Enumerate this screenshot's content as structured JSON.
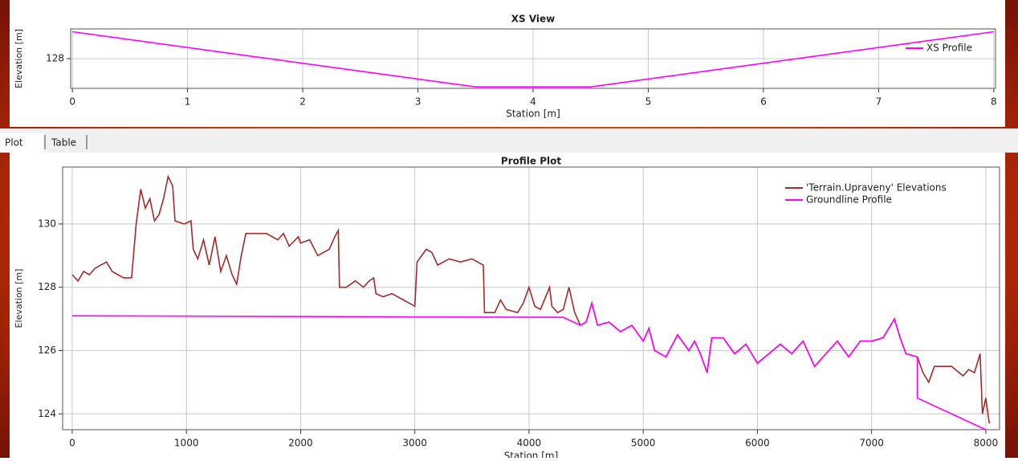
{
  "tabs": [
    "Plot",
    "Table"
  ],
  "chart_data": [
    {
      "type": "line",
      "title": "XS View",
      "x_label": "Station [m]",
      "y_label": "Elevation [m]",
      "xlim": [
        -0.015,
        8.015
      ],
      "xticks": [
        0,
        1,
        2,
        3,
        4,
        5,
        6,
        7,
        8
      ],
      "ylim": [
        126.95,
        129.05
      ],
      "yticks": [
        128
      ],
      "grid": true,
      "series": [
        {
          "name": "XS Profile",
          "color": "#ff00ff",
          "x": [
            0,
            3.5,
            4.5,
            8
          ],
          "values": [
            128.95,
            127.0,
            127.0,
            128.95
          ]
        }
      ]
    },
    {
      "type": "line",
      "title": "Profile Plot",
      "x_label": "Station [m]",
      "y_label": "Elevation [m]",
      "xlim": [
        -84,
        8120
      ],
      "xticks": [
        0,
        1000,
        2000,
        3000,
        4000,
        5000,
        6000,
        7000,
        8000
      ],
      "ylim": [
        123.5,
        131.8
      ],
      "yticks": [
        124,
        126,
        128,
        130
      ],
      "grid": true,
      "series": [
        {
          "name": "'Terrain.Upraveny' Elevations",
          "color": "#a52a2a",
          "x": [
            0,
            50,
            100,
            150,
            200,
            250,
            300,
            350,
            400,
            450,
            520,
            560,
            600,
            640,
            680,
            720,
            760,
            800,
            840,
            880,
            900,
            980,
            1040,
            1060,
            1100,
            1150,
            1200,
            1250,
            1300,
            1350,
            1400,
            1440,
            1480,
            1520,
            1600,
            1700,
            1800,
            1850,
            1900,
            1980,
            2000,
            2080,
            2150,
            2250,
            2300,
            2330,
            2340,
            2400,
            2480,
            2550,
            2600,
            2640,
            2660,
            2720,
            2800,
            2900,
            3000,
            3020,
            3100,
            3150,
            3200,
            3300,
            3400,
            3500,
            3600,
            3610,
            3700,
            3750,
            3800,
            3900,
            3950,
            4000,
            4050,
            4100,
            4180,
            4200,
            4250,
            4300,
            4350,
            4400,
            4450,
            4500,
            4550,
            4600,
            4700,
            4800,
            4900,
            5000,
            5050,
            5100,
            5200,
            5300,
            5400,
            5450,
            5500,
            5560,
            5600,
            5700,
            5800,
            5900,
            6000,
            6100,
            6200,
            6300,
            6400,
            6500,
            6600,
            6700,
            6800,
            6900,
            7000,
            7100,
            7200,
            7250,
            7300,
            7400,
            7450,
            7500,
            7550,
            7600,
            7700,
            7800,
            7850,
            7900,
            7950,
            7970,
            8000,
            8030
          ],
          "values": [
            128.4,
            128.2,
            128.5,
            128.4,
            128.6,
            128.7,
            128.8,
            128.5,
            128.4,
            128.3,
            128.3,
            130.0,
            131.1,
            130.5,
            130.8,
            130.1,
            130.3,
            130.8,
            131.5,
            131.2,
            130.1,
            130.0,
            130.1,
            129.2,
            128.9,
            129.5,
            128.7,
            129.6,
            128.5,
            129.0,
            128.4,
            128.1,
            129.0,
            129.7,
            129.7,
            129.7,
            129.5,
            129.7,
            129.3,
            129.6,
            129.4,
            129.5,
            129.0,
            129.2,
            129.6,
            129.8,
            128.0,
            128.0,
            128.2,
            128.0,
            128.2,
            128.3,
            127.8,
            127.7,
            127.8,
            127.6,
            127.4,
            128.8,
            129.2,
            129.1,
            128.7,
            128.9,
            128.8,
            128.9,
            128.7,
            127.2,
            127.2,
            127.6,
            127.3,
            127.2,
            127.5,
            128.0,
            127.4,
            127.3,
            128.0,
            127.4,
            127.2,
            127.3,
            128.0,
            127.2,
            126.8,
            126.9,
            127.5,
            126.8,
            126.9,
            126.6,
            126.8,
            126.3,
            126.7,
            126.0,
            125.8,
            126.5,
            126.0,
            126.3,
            125.9,
            125.3,
            126.4,
            126.4,
            125.9,
            126.2,
            125.6,
            125.9,
            126.2,
            125.9,
            126.3,
            125.5,
            125.9,
            126.3,
            125.8,
            126.3,
            126.3,
            126.4,
            127.0,
            126.4,
            125.9,
            125.8,
            125.3,
            125.0,
            125.5,
            125.5,
            125.5,
            125.2,
            125.4,
            125.3,
            125.9,
            124.0,
            124.5,
            123.7
          ]
        },
        {
          "name": "Groundline Profile",
          "color": "#ff00ff",
          "x": [
            0,
            4300,
            4450,
            4500,
            4550,
            4600,
            4700,
            4800,
            4900,
            5000,
            5050,
            5100,
            5200,
            5300,
            5400,
            5450,
            5500,
            5560,
            5600,
            5700,
            5800,
            5900,
            6000,
            6100,
            6200,
            6300,
            6400,
            6500,
            6600,
            6700,
            6800,
            6900,
            7000,
            7100,
            7200,
            7250,
            7300,
            7400,
            7400,
            8000
          ],
          "values": [
            127.1,
            127.05,
            126.8,
            126.9,
            127.5,
            126.8,
            126.9,
            126.6,
            126.8,
            126.3,
            126.7,
            126.0,
            125.8,
            126.5,
            126.0,
            126.3,
            125.9,
            125.3,
            126.4,
            126.4,
            125.9,
            126.2,
            125.6,
            125.9,
            126.2,
            125.9,
            126.3,
            125.5,
            125.9,
            126.3,
            125.8,
            126.3,
            126.3,
            126.4,
            127.0,
            126.4,
            125.9,
            125.8,
            124.5,
            123.5
          ]
        }
      ]
    }
  ]
}
